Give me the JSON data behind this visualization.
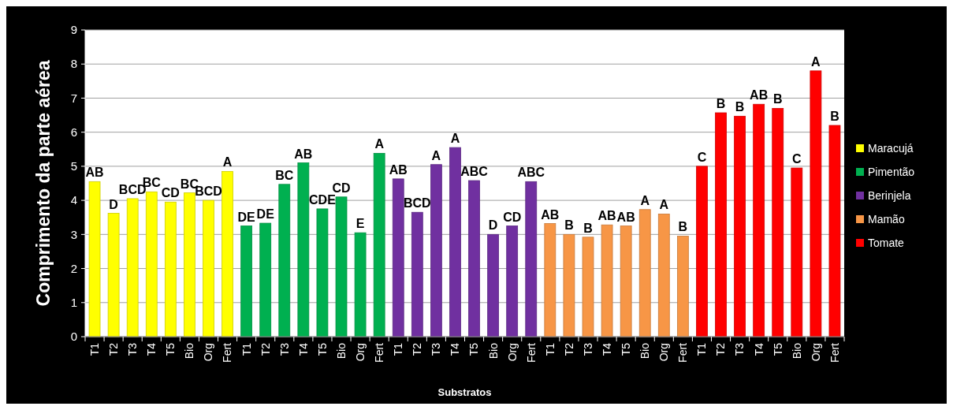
{
  "chart_data": {
    "type": "bar",
    "xlabel": "Substratos",
    "ylabel": "Comprimento da parte aérea",
    "categories": [
      "T1",
      "T2",
      "T3",
      "T4",
      "T5",
      "Bio",
      "Org",
      "Fert",
      "T1",
      "T2",
      "T3",
      "T4",
      "T5",
      "Bio",
      "Org",
      "Fert",
      "T1",
      "T2",
      "T3",
      "T4",
      "T5",
      "Bio",
      "Org",
      "Fert",
      "T1",
      "T2",
      "T3",
      "T4",
      "T5",
      "Bio",
      "Org",
      "Fert",
      "T1",
      "T2",
      "T3",
      "T4",
      "T5",
      "Bio",
      "Org",
      "Fert"
    ],
    "series": [
      {
        "name": "Maracujá",
        "color": "#ffff00",
        "values": [
          4.55,
          3.62,
          4.05,
          4.25,
          3.95,
          4.22,
          4.0,
          4.85,
          null,
          null,
          null,
          null,
          null,
          null,
          null,
          null,
          null,
          null,
          null,
          null,
          null,
          null,
          null,
          null,
          null,
          null,
          null,
          null,
          null,
          null,
          null,
          null,
          null,
          null,
          null,
          null,
          null,
          null,
          null,
          null
        ],
        "value_labels": [
          "AB",
          "D",
          "BCD",
          "BC",
          "CD",
          "BC",
          "BCD",
          "A",
          null,
          null,
          null,
          null,
          null,
          null,
          null,
          null,
          null,
          null,
          null,
          null,
          null,
          null,
          null,
          null,
          null,
          null,
          null,
          null,
          null,
          null,
          null,
          null,
          null,
          null,
          null,
          null,
          null,
          null,
          null,
          null
        ]
      },
      {
        "name": "Pimentão",
        "color": "#00b050",
        "values": [
          null,
          null,
          null,
          null,
          null,
          null,
          null,
          null,
          3.25,
          3.33,
          4.47,
          5.1,
          3.75,
          4.1,
          3.05,
          5.38,
          null,
          null,
          null,
          null,
          null,
          null,
          null,
          null,
          null,
          null,
          null,
          null,
          null,
          null,
          null,
          null,
          null,
          null,
          null,
          null,
          null,
          null,
          null,
          null
        ],
        "value_labels": [
          null,
          null,
          null,
          null,
          null,
          null,
          null,
          null,
          "DE",
          "DE",
          "BC",
          "AB",
          "CDE",
          "CD",
          "E",
          "A",
          null,
          null,
          null,
          null,
          null,
          null,
          null,
          null,
          null,
          null,
          null,
          null,
          null,
          null,
          null,
          null,
          null,
          null,
          null,
          null,
          null,
          null,
          null,
          null
        ]
      },
      {
        "name": "Berinjela",
        "color": "#7030a0",
        "values": [
          null,
          null,
          null,
          null,
          null,
          null,
          null,
          null,
          null,
          null,
          null,
          null,
          null,
          null,
          null,
          null,
          4.63,
          3.65,
          5.05,
          5.55,
          4.58,
          3.0,
          3.25,
          4.55,
          null,
          null,
          null,
          null,
          null,
          null,
          null,
          null,
          null,
          null,
          null,
          null,
          null,
          null,
          null,
          null
        ],
        "value_labels": [
          null,
          null,
          null,
          null,
          null,
          null,
          null,
          null,
          null,
          null,
          null,
          null,
          null,
          null,
          null,
          null,
          "AB",
          "BCD",
          "A",
          "A",
          "ABC",
          "D",
          "CD",
          "ABC",
          null,
          null,
          null,
          null,
          null,
          null,
          null,
          null,
          null,
          null,
          null,
          null,
          null,
          null,
          null,
          null
        ]
      },
      {
        "name": "Mamão",
        "color": "#f79646",
        "values": [
          null,
          null,
          null,
          null,
          null,
          null,
          null,
          null,
          null,
          null,
          null,
          null,
          null,
          null,
          null,
          null,
          null,
          null,
          null,
          null,
          null,
          null,
          null,
          null,
          3.32,
          3.0,
          2.92,
          3.28,
          3.25,
          3.73,
          3.6,
          2.95,
          null,
          null,
          null,
          null,
          null,
          null,
          null,
          null
        ],
        "value_labels": [
          null,
          null,
          null,
          null,
          null,
          null,
          null,
          null,
          null,
          null,
          null,
          null,
          null,
          null,
          null,
          null,
          null,
          null,
          null,
          null,
          null,
          null,
          null,
          null,
          "AB",
          "B",
          "B",
          "AB",
          "AB",
          "A",
          "A",
          "B",
          null,
          null,
          null,
          null,
          null,
          null,
          null,
          null
        ]
      },
      {
        "name": "Tomate",
        "color": "#ff0000",
        "values": [
          null,
          null,
          null,
          null,
          null,
          null,
          null,
          null,
          null,
          null,
          null,
          null,
          null,
          null,
          null,
          null,
          null,
          null,
          null,
          null,
          null,
          null,
          null,
          null,
          null,
          null,
          null,
          null,
          null,
          null,
          null,
          null,
          5.0,
          6.57,
          6.47,
          6.82,
          6.7,
          4.95,
          7.8,
          6.2
        ],
        "value_labels": [
          null,
          null,
          null,
          null,
          null,
          null,
          null,
          null,
          null,
          null,
          null,
          null,
          null,
          null,
          null,
          null,
          null,
          null,
          null,
          null,
          null,
          null,
          null,
          null,
          null,
          null,
          null,
          null,
          null,
          null,
          null,
          null,
          "C",
          "B",
          "B",
          "AB",
          "B",
          "C",
          "A",
          "B"
        ]
      }
    ],
    "ylim": [
      0,
      9
    ],
    "yticks": [
      0,
      1,
      2,
      3,
      4,
      5,
      6,
      7,
      8,
      9
    ],
    "grid": "y",
    "legend": "right"
  }
}
